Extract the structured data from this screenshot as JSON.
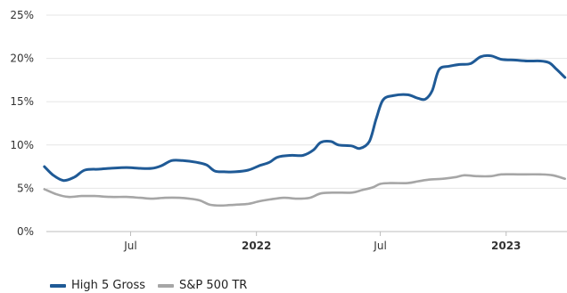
{
  "chart_data": {
    "type": "line",
    "x_axis": {
      "type": "date",
      "min": "2021-02-20",
      "max": "2023-03-31",
      "ticks": [
        {
          "date": "2021-07-01",
          "label": "Jul",
          "bold": false
        },
        {
          "date": "2022-01-01",
          "label": "2022",
          "bold": true
        },
        {
          "date": "2022-07-01",
          "label": "Jul",
          "bold": false
        },
        {
          "date": "2023-01-01",
          "label": "2023",
          "bold": true
        }
      ]
    },
    "y_axis": {
      "min": 0,
      "max": 25,
      "ticks": [
        {
          "value": 0,
          "label": "0%"
        },
        {
          "value": 5,
          "label": "5%"
        },
        {
          "value": 10,
          "label": "10%"
        },
        {
          "value": 15,
          "label": "15%"
        },
        {
          "value": 20,
          "label": "20%"
        },
        {
          "value": 25,
          "label": "25%"
        }
      ]
    },
    "grid": "horizontal",
    "legend_position": "bottom-left",
    "series": [
      {
        "name": "High 5 Gross",
        "color": "#1f5a96",
        "points": [
          [
            "2021-02-25",
            7.5
          ],
          [
            "2021-03-10",
            6.5
          ],
          [
            "2021-03-25",
            5.9
          ],
          [
            "2021-04-10",
            6.3
          ],
          [
            "2021-04-25",
            7.1
          ],
          [
            "2021-05-15",
            7.2
          ],
          [
            "2021-06-01",
            7.3
          ],
          [
            "2021-06-25",
            7.4
          ],
          [
            "2021-07-15",
            7.3
          ],
          [
            "2021-08-01",
            7.3
          ],
          [
            "2021-08-15",
            7.6
          ],
          [
            "2021-08-30",
            8.2
          ],
          [
            "2021-09-15",
            8.2
          ],
          [
            "2021-10-05",
            8.0
          ],
          [
            "2021-10-20",
            7.7
          ],
          [
            "2021-11-01",
            7.0
          ],
          [
            "2021-11-15",
            6.9
          ],
          [
            "2021-12-01",
            6.9
          ],
          [
            "2021-12-20",
            7.1
          ],
          [
            "2022-01-05",
            7.6
          ],
          [
            "2022-01-20",
            8.0
          ],
          [
            "2022-02-01",
            8.6
          ],
          [
            "2022-02-20",
            8.8
          ],
          [
            "2022-03-10",
            8.8
          ],
          [
            "2022-03-25",
            9.4
          ],
          [
            "2022-04-05",
            10.3
          ],
          [
            "2022-04-20",
            10.4
          ],
          [
            "2022-05-01",
            10.0
          ],
          [
            "2022-05-20",
            9.9
          ],
          [
            "2022-06-01",
            9.6
          ],
          [
            "2022-06-15",
            10.4
          ],
          [
            "2022-06-25",
            13.0
          ],
          [
            "2022-07-05",
            15.2
          ],
          [
            "2022-07-20",
            15.7
          ],
          [
            "2022-08-10",
            15.8
          ],
          [
            "2022-08-25",
            15.4
          ],
          [
            "2022-09-05",
            15.3
          ],
          [
            "2022-09-15",
            16.3
          ],
          [
            "2022-09-25",
            18.7
          ],
          [
            "2022-10-10",
            19.1
          ],
          [
            "2022-10-25",
            19.3
          ],
          [
            "2022-11-10",
            19.4
          ],
          [
            "2022-11-25",
            20.2
          ],
          [
            "2022-12-10",
            20.3
          ],
          [
            "2022-12-25",
            19.9
          ],
          [
            "2023-01-15",
            19.8
          ],
          [
            "2023-02-01",
            19.7
          ],
          [
            "2023-02-20",
            19.7
          ],
          [
            "2023-03-05",
            19.5
          ],
          [
            "2023-03-15",
            18.8
          ],
          [
            "2023-03-28",
            17.8
          ]
        ]
      },
      {
        "name": "S&P 500 TR",
        "color": "#a6a6a6",
        "points": [
          [
            "2021-02-25",
            4.9
          ],
          [
            "2021-03-15",
            4.3
          ],
          [
            "2021-04-01",
            4.0
          ],
          [
            "2021-04-20",
            4.1
          ],
          [
            "2021-05-10",
            4.1
          ],
          [
            "2021-06-01",
            4.0
          ],
          [
            "2021-06-25",
            4.0
          ],
          [
            "2021-07-15",
            3.9
          ],
          [
            "2021-08-01",
            3.8
          ],
          [
            "2021-08-20",
            3.9
          ],
          [
            "2021-09-10",
            3.9
          ],
          [
            "2021-09-25",
            3.8
          ],
          [
            "2021-10-10",
            3.6
          ],
          [
            "2021-10-25",
            3.1
          ],
          [
            "2021-11-10",
            3.0
          ],
          [
            "2021-12-01",
            3.1
          ],
          [
            "2021-12-20",
            3.2
          ],
          [
            "2022-01-05",
            3.5
          ],
          [
            "2022-01-20",
            3.7
          ],
          [
            "2022-02-10",
            3.9
          ],
          [
            "2022-03-01",
            3.8
          ],
          [
            "2022-03-20",
            3.9
          ],
          [
            "2022-04-05",
            4.4
          ],
          [
            "2022-04-25",
            4.5
          ],
          [
            "2022-05-20",
            4.5
          ],
          [
            "2022-06-05",
            4.8
          ],
          [
            "2022-06-20",
            5.1
          ],
          [
            "2022-07-01",
            5.5
          ],
          [
            "2022-07-15",
            5.6
          ],
          [
            "2022-08-10",
            5.6
          ],
          [
            "2022-08-25",
            5.8
          ],
          [
            "2022-09-10",
            6.0
          ],
          [
            "2022-10-01",
            6.1
          ],
          [
            "2022-10-20",
            6.3
          ],
          [
            "2022-11-01",
            6.5
          ],
          [
            "2022-11-20",
            6.4
          ],
          [
            "2022-12-10",
            6.4
          ],
          [
            "2022-12-25",
            6.6
          ],
          [
            "2023-01-20",
            6.6
          ],
          [
            "2023-02-20",
            6.6
          ],
          [
            "2023-03-10",
            6.5
          ],
          [
            "2023-03-28",
            6.1
          ]
        ]
      }
    ]
  }
}
